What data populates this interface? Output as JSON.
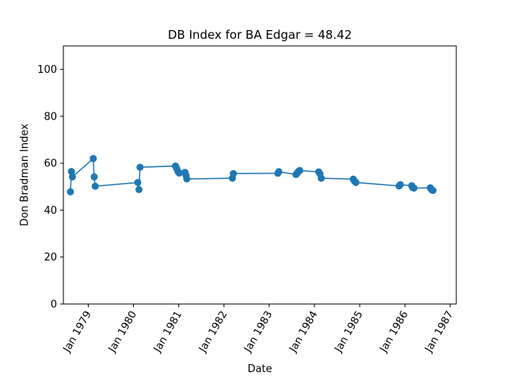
{
  "chart_data": {
    "type": "line",
    "title": "DB Index for BA Edgar = 48.42",
    "xlabel": "Date",
    "ylabel": "Don Bradman Index",
    "x_tick_labels": [
      "Jan 1979",
      "Jan 1980",
      "Jan 1981",
      "Jan 1982",
      "Jan 1983",
      "Jan 1984",
      "Jan 1985",
      "Jan 1986",
      "Jan 1987"
    ],
    "y_ticks": [
      0,
      20,
      40,
      60,
      80,
      100
    ],
    "ylim": [
      0,
      110
    ],
    "xlim": [
      "1978-06-14",
      "1987-02-20"
    ],
    "grid": false,
    "legend": "none",
    "color": "#1f77b4",
    "series": [
      {
        "x": [
          "1978-08-10",
          "1978-08-18",
          "1978-08-26",
          "1979-02-10",
          "1979-02-18",
          "1979-02-26",
          "1980-02-05",
          "1980-02-14",
          "1980-02-23",
          "1980-12-05",
          "1980-12-15",
          "1980-12-25",
          "1981-01-05",
          "1981-02-20",
          "1981-02-28",
          "1981-03-07",
          "1982-03-10",
          "1982-03-18",
          "1983-03-12",
          "1983-03-20",
          "1983-08-05",
          "1983-08-15",
          "1983-08-25",
          "1983-09-05",
          "1984-02-05",
          "1984-02-15",
          "1984-02-25",
          "1984-11-10",
          "1984-11-20",
          "1984-12-01",
          "1985-11-15",
          "1985-11-25",
          "1986-02-25",
          "1986-03-05",
          "1986-03-15",
          "1986-07-25",
          "1986-08-05",
          "1986-08-15"
        ],
        "y": [
          47.8,
          56.5,
          54.2,
          62.0,
          54.2,
          50.2,
          51.8,
          48.8,
          58.3,
          58.8,
          57.8,
          56.5,
          55.8,
          56.1,
          54.8,
          53.3,
          53.6,
          55.6,
          55.7,
          56.4,
          55.2,
          55.7,
          56.5,
          56.9,
          56.3,
          55.5,
          53.6,
          53.2,
          52.4,
          51.8,
          50.3,
          50.9,
          50.4,
          49.6,
          49.4,
          49.5,
          48.7,
          48.4
        ]
      }
    ]
  }
}
